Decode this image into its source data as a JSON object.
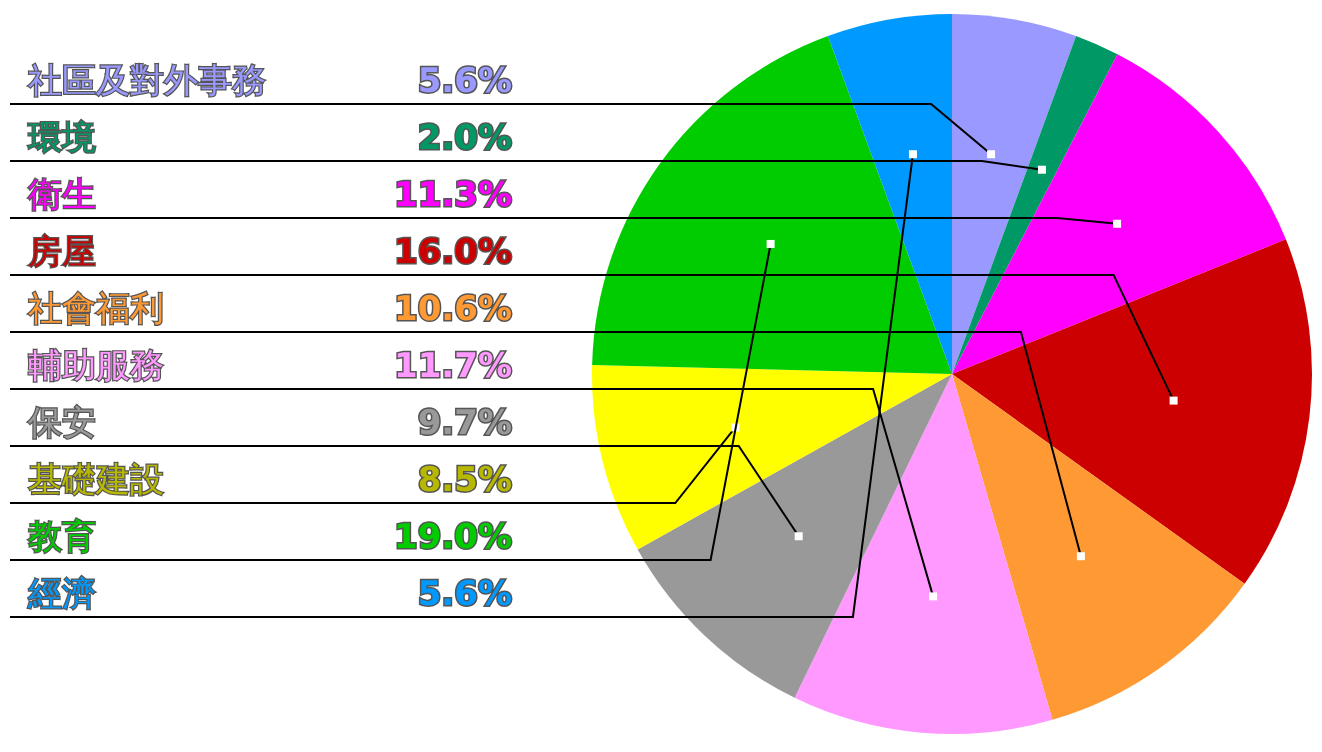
{
  "chart_data": {
    "type": "pie",
    "categories": [
      "社區及對外事務",
      "環境",
      "衛生",
      "房屋",
      "社會福利",
      "輔助服務",
      "保安",
      "基礎建設",
      "教育",
      "經濟"
    ],
    "values": [
      5.6,
      2.0,
      11.3,
      16.0,
      10.6,
      11.7,
      9.7,
      8.5,
      19.0,
      5.6
    ],
    "value_labels": [
      "5.6%",
      "2.0%",
      "11.3%",
      "16.0%",
      "10.6%",
      "11.7%",
      "9.7%",
      "8.5%",
      "19.0%",
      "5.6%"
    ],
    "colors": [
      "#9999ff",
      "#009966",
      "#ff00ff",
      "#cc0000",
      "#ff9933",
      "#ff99ff",
      "#999999",
      "#ffff00",
      "#00cc00",
      "#0099ff"
    ]
  }
}
